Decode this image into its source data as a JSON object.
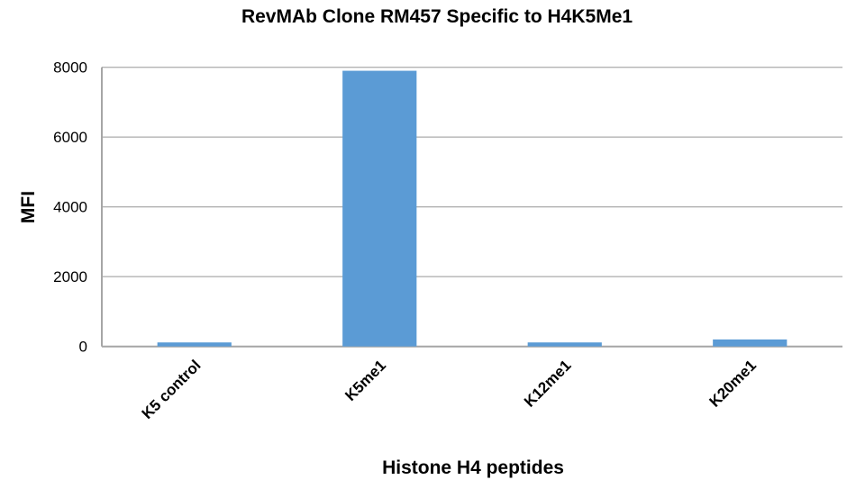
{
  "chart_data": {
    "type": "bar",
    "title": "RevMAb Clone RM457 Specific to H4K5Me1",
    "xlabel": "Histone H4 peptides",
    "ylabel": "MFI",
    "categories": [
      "K5 control",
      "K5me1",
      "K12me1",
      "K20me1"
    ],
    "values": [
      115,
      7900,
      115,
      200
    ],
    "ylim": [
      0,
      8000
    ],
    "yticks": [
      "0",
      "2000",
      "4000",
      "6000",
      "8000"
    ],
    "grid": true,
    "legend": "none",
    "bar_color": "#5b9bd5"
  }
}
